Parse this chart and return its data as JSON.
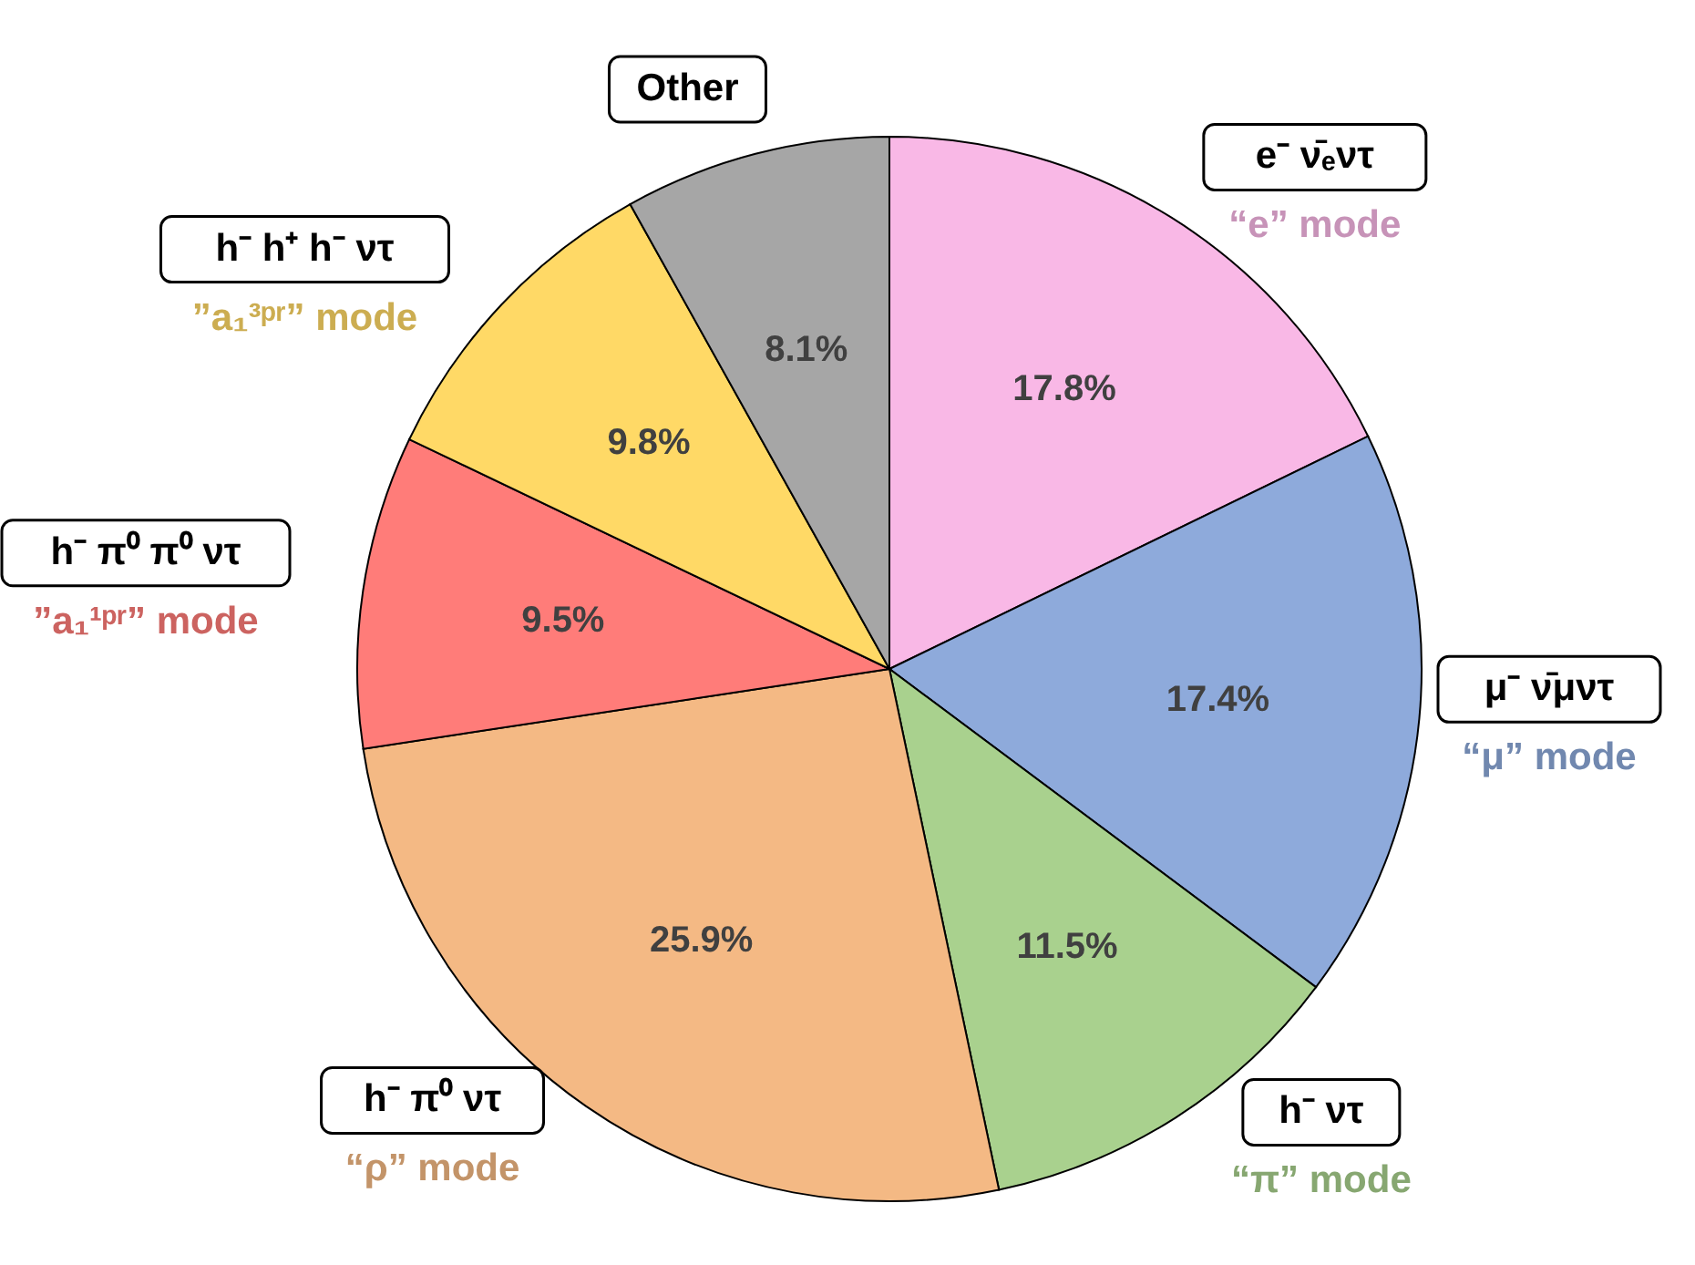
{
  "chart_data": {
    "type": "pie",
    "categories": [
      "e⁻ ν̄ₑντ",
      "μ⁻ ν̄μντ",
      "h⁻ ντ",
      "h⁻ π⁰ ντ",
      "h⁻ π⁰ π⁰ ντ",
      "h⁻ h⁺ h⁻ ντ",
      "Other"
    ],
    "values": [
      17.8,
      17.4,
      11.5,
      25.9,
      9.5,
      9.8,
      8.1
    ],
    "value_labels": [
      "17.8%",
      "17.4%",
      "11.5%",
      "25.9%",
      "9.5%",
      "9.8%",
      "8.1%"
    ],
    "colors": [
      "#f9b8e6",
      "#8eaadb",
      "#a9d18e",
      "#f4b984",
      "#ff7c79",
      "#ffd966",
      "#a6a6a6"
    ],
    "annotations": [
      "“e” mode",
      "“μ” mode",
      "“π” mode",
      "“ρ” mode",
      "”a₁¹ᵖʳ” mode",
      "”a₁³ᵖʳ” mode"
    ]
  }
}
